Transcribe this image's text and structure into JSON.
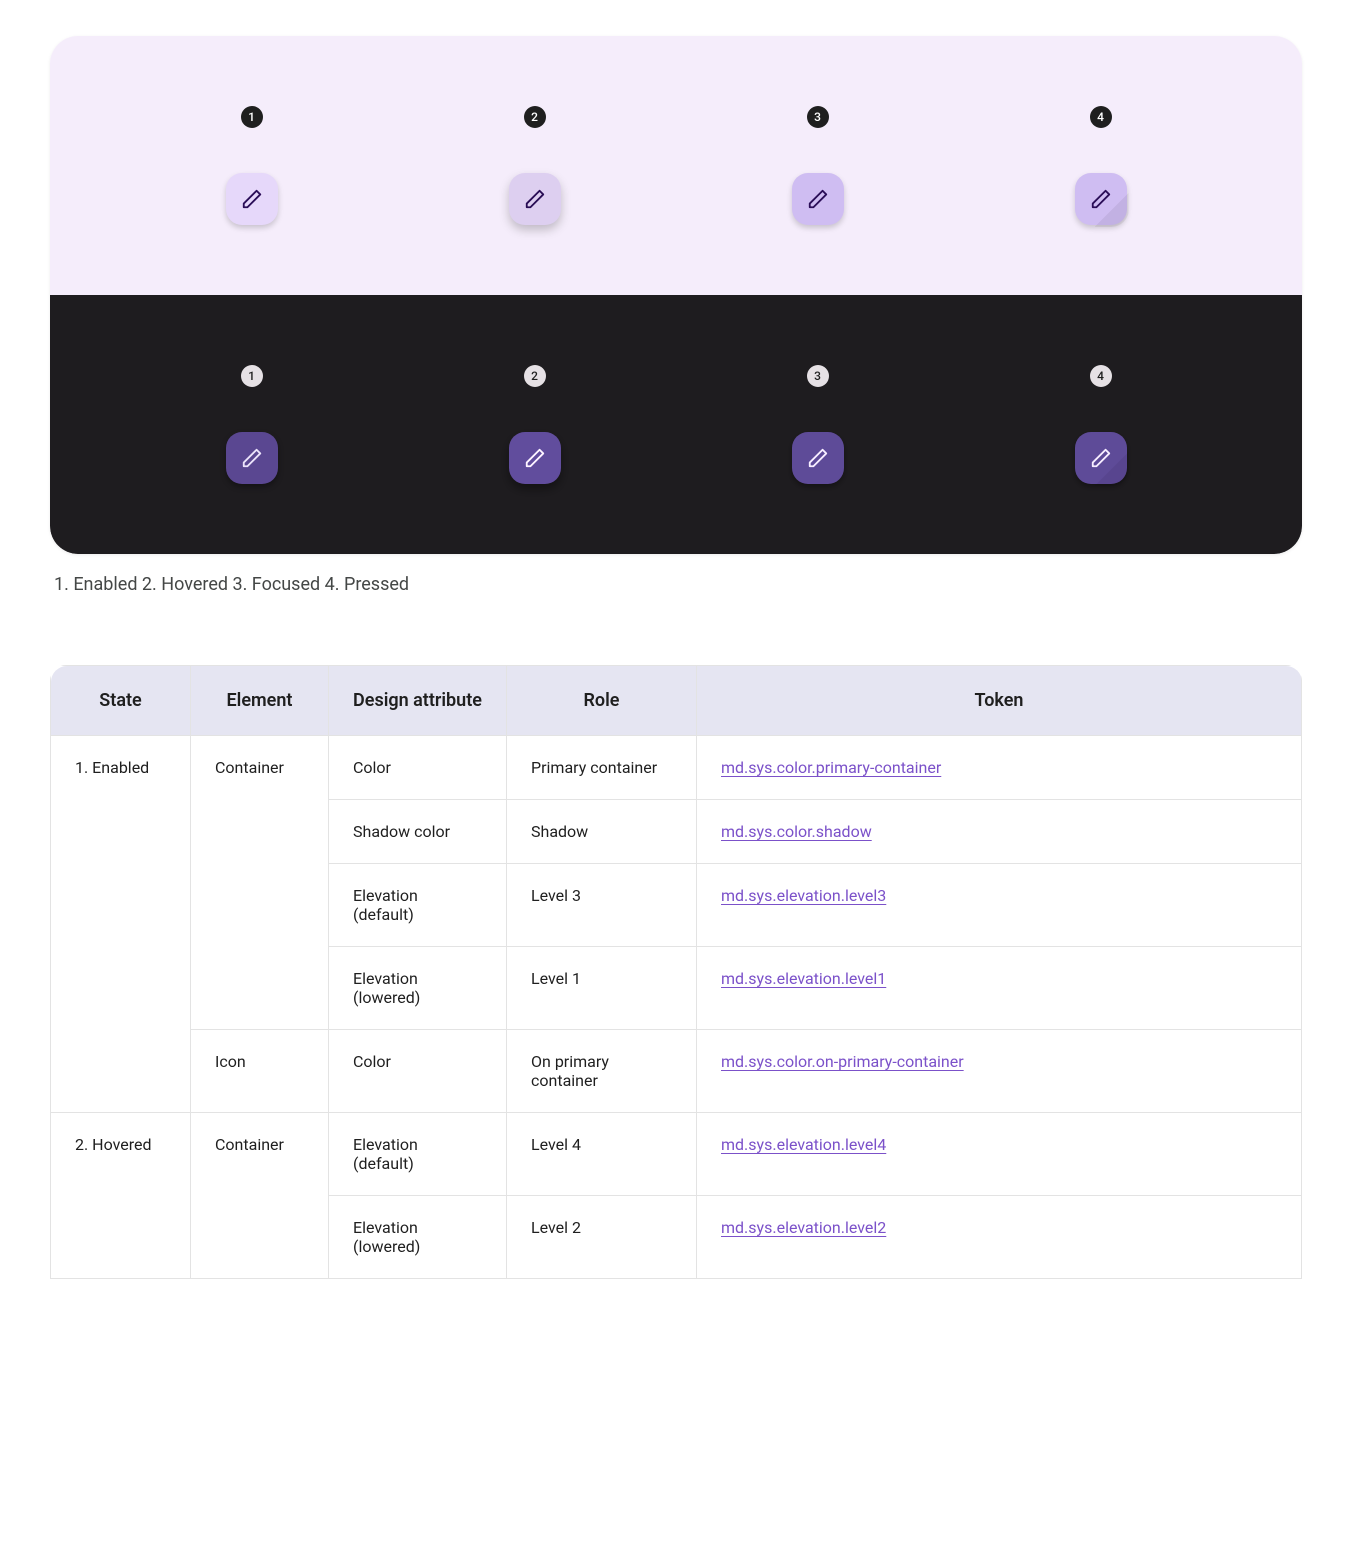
{
  "colors": {
    "light_bg": "#f5edfb",
    "dark_bg": "#1e1c1f",
    "fab_light": "#e6d8fa",
    "fab_light_focus": "#cfbdf2",
    "fab_dark": "#5a4791",
    "icon_light": "#2a0d57",
    "icon_dark": "#ece4fb",
    "header_bg": "#e5e5f2",
    "border": "#e3e3e3",
    "link": "#7b51c9"
  },
  "demo": {
    "badges": [
      "1",
      "2",
      "3",
      "4"
    ],
    "states": [
      "enabled",
      "hover",
      "focus",
      "press"
    ]
  },
  "caption": "1. Enabled 2. Hovered 3. Focused 4. Pressed",
  "table": {
    "columns": [
      "State",
      "Element",
      "Design attribute",
      "Role",
      "Token"
    ],
    "rows": [
      {
        "state": "1. Enabled",
        "element": "Container",
        "attr": "Color",
        "role": "Primary container",
        "token": "md.sys.color.primary-container",
        "state_rowspan": 5,
        "element_rowspan": 4
      },
      {
        "attr": "Shadow color",
        "role": "Shadow",
        "token": "md.sys.color.shadow"
      },
      {
        "attr": "Elevation (default)",
        "role": "Level 3",
        "token": "md.sys.elevation.level3"
      },
      {
        "attr": "Elevation (lowered)",
        "role": "Level 1",
        "token": "md.sys.elevation.level1"
      },
      {
        "element": "Icon",
        "attr": "Color",
        "role": "On primary container",
        "token": "md.sys.color.on-primary-container",
        "element_rowspan": 1
      },
      {
        "state": "2. Hovered",
        "element": "Container",
        "attr": "Elevation (default)",
        "role": "Level 4",
        "token": "md.sys.elevation.level4",
        "state_rowspan": 2,
        "element_rowspan": 2
      },
      {
        "attr": "Elevation (lowered)",
        "role": "Level 2",
        "token": "md.sys.elevation.level2"
      }
    ]
  }
}
